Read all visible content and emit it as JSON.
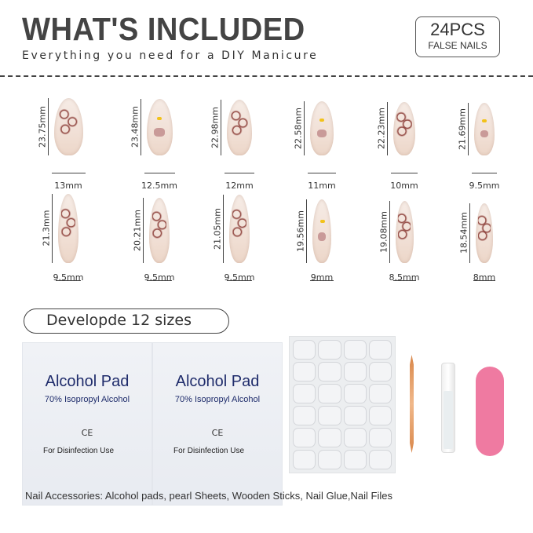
{
  "header": {
    "title": "WHAT'S INCLUDED",
    "subtitle": "Everything you need for a DIY Manicure",
    "badge_count": "24PCS",
    "badge_label": "FALSE NAILS"
  },
  "nails": [
    {
      "height": "23.75mm",
      "width": "13mm",
      "style": "leopard"
    },
    {
      "height": "23.48mm",
      "width": "12.5mm",
      "style": "kitty"
    },
    {
      "height": "22.98mm",
      "width": "12mm",
      "style": "leopard"
    },
    {
      "height": "22.58mm",
      "width": "11mm",
      "style": "kitty"
    },
    {
      "height": "22.23mm",
      "width": "10mm",
      "style": "leopard"
    },
    {
      "height": "21.69mm",
      "width": "9.5mm",
      "style": "kitty"
    },
    {
      "height": "21.3mm",
      "width": "9.5mm",
      "style": "leopard"
    },
    {
      "height": "20.21mm",
      "width": "9.5mm",
      "style": "leopard"
    },
    {
      "height": "21.05mm",
      "width": "9.5mm",
      "style": "leopard"
    },
    {
      "height": "19.56mm",
      "width": "9mm",
      "style": "kitty"
    },
    {
      "height": "19.08mm",
      "width": "8.5mm",
      "style": "leopard"
    },
    {
      "height": "18.54mm",
      "width": "8mm",
      "style": "leopard"
    }
  ],
  "sizes_label": "Developde 12 sizes",
  "alcohol_pad": {
    "title": "Alcohol Pad",
    "subtitle": "70% Isopropyl Alcohol",
    "mark": "CE",
    "usage": "For  Disinfection Use"
  },
  "colors": {
    "nail_file": "#ef7aa1",
    "pad_text": "#1f2c6b",
    "leopard": "#8a3b35"
  },
  "footer": "Nail Accessories: Alcohol pads, pearl Sheets, Wooden Sticks,  Nail Glue,Nail Files"
}
